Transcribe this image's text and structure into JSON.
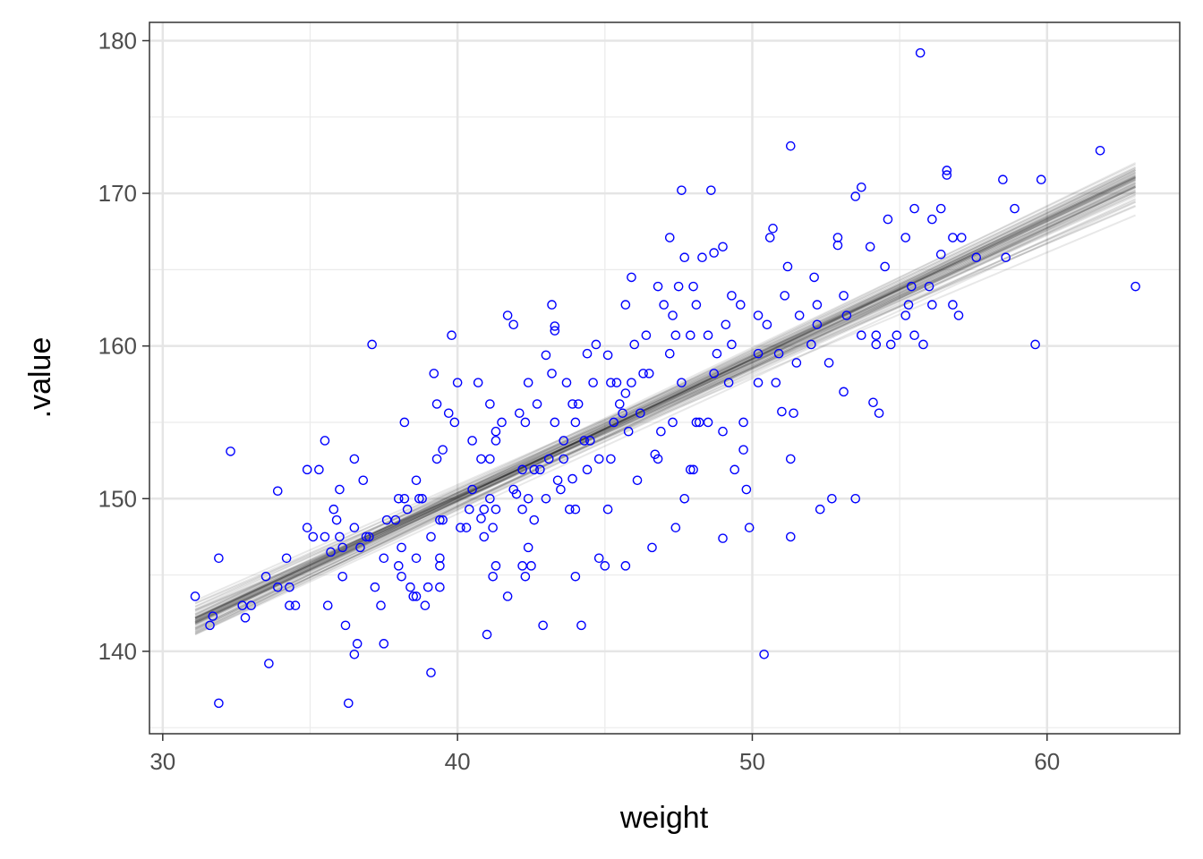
{
  "chart_data": {
    "type": "scatter",
    "title": "",
    "xlabel": "weight",
    "ylabel": ".value",
    "xlim": [
      29.55,
      64.5
    ],
    "ylim": [
      134.6,
      181.2
    ],
    "xticks": [
      30,
      40,
      50,
      60
    ],
    "yticks": [
      140,
      150,
      160,
      170,
      180
    ],
    "xtick_labels": [
      "30",
      "40",
      "50",
      "60"
    ],
    "ytick_labels": [
      "140",
      "150",
      "160",
      "170",
      "180"
    ],
    "grid": true,
    "point_color": "#0000ff",
    "line_color": "#000000",
    "fit_lines": {
      "n": 60,
      "x_range": [
        31.1,
        63.0
      ],
      "y_at_start": 142.0,
      "y_at_end": 170.6,
      "spread_start": 1.4,
      "spread_end": 1.6
    },
    "points": [
      [
        31.1,
        143.6
      ],
      [
        31.7,
        142.3
      ],
      [
        31.6,
        141.7
      ],
      [
        31.9,
        146.1
      ],
      [
        31.9,
        136.6
      ],
      [
        32.3,
        153.1
      ],
      [
        32.7,
        143.0
      ],
      [
        32.8,
        142.2
      ],
      [
        33.0,
        143.0
      ],
      [
        33.5,
        144.9
      ],
      [
        33.6,
        139.2
      ],
      [
        33.9,
        150.5
      ],
      [
        33.9,
        144.2
      ],
      [
        34.2,
        146.1
      ],
      [
        34.3,
        144.2
      ],
      [
        34.3,
        143.0
      ],
      [
        34.5,
        143.0
      ],
      [
        34.9,
        151.9
      ],
      [
        34.9,
        148.1
      ],
      [
        35.1,
        147.5
      ],
      [
        35.3,
        151.9
      ],
      [
        35.5,
        153.8
      ],
      [
        35.5,
        147.5
      ],
      [
        35.7,
        146.5
      ],
      [
        35.6,
        143.0
      ],
      [
        35.8,
        149.3
      ],
      [
        35.9,
        148.6
      ],
      [
        36.0,
        147.5
      ],
      [
        36.0,
        150.6
      ],
      [
        36.1,
        144.9
      ],
      [
        36.1,
        146.8
      ],
      [
        36.2,
        141.7
      ],
      [
        36.3,
        136.6
      ],
      [
        36.5,
        148.1
      ],
      [
        36.5,
        152.6
      ],
      [
        36.5,
        139.8
      ],
      [
        36.6,
        140.5
      ],
      [
        36.7,
        146.8
      ],
      [
        36.8,
        151.2
      ],
      [
        36.9,
        147.5
      ],
      [
        37.0,
        147.5
      ],
      [
        37.1,
        160.1
      ],
      [
        37.2,
        144.2
      ],
      [
        37.4,
        143.0
      ],
      [
        37.5,
        140.5
      ],
      [
        37.5,
        146.1
      ],
      [
        37.6,
        148.6
      ],
      [
        37.9,
        148.6
      ],
      [
        38.0,
        145.6
      ],
      [
        38.0,
        150.0
      ],
      [
        38.1,
        146.8
      ],
      [
        38.1,
        144.9
      ],
      [
        38.2,
        155.0
      ],
      [
        38.2,
        150.0
      ],
      [
        38.3,
        149.3
      ],
      [
        38.4,
        144.2
      ],
      [
        38.5,
        143.6
      ],
      [
        38.6,
        151.2
      ],
      [
        38.6,
        146.1
      ],
      [
        38.6,
        143.6
      ],
      [
        38.7,
        150.0
      ],
      [
        38.8,
        150.0
      ],
      [
        38.9,
        143.0
      ],
      [
        39.0,
        144.2
      ],
      [
        39.1,
        147.5
      ],
      [
        39.1,
        138.6
      ],
      [
        39.2,
        158.2
      ],
      [
        39.3,
        156.2
      ],
      [
        39.3,
        152.6
      ],
      [
        39.4,
        146.1
      ],
      [
        39.4,
        145.6
      ],
      [
        39.4,
        144.2
      ],
      [
        39.4,
        148.6
      ],
      [
        39.5,
        148.6
      ],
      [
        39.5,
        153.2
      ],
      [
        39.7,
        155.6
      ],
      [
        39.8,
        160.7
      ],
      [
        39.9,
        155.0
      ],
      [
        40.0,
        157.6
      ],
      [
        40.1,
        148.1
      ],
      [
        40.3,
        148.1
      ],
      [
        40.5,
        150.6
      ],
      [
        40.5,
        153.8
      ],
      [
        40.4,
        149.3
      ],
      [
        40.7,
        157.6
      ],
      [
        40.8,
        148.7
      ],
      [
        40.8,
        152.6
      ],
      [
        40.9,
        147.5
      ],
      [
        40.9,
        149.3
      ],
      [
        41.0,
        141.1
      ],
      [
        41.1,
        150.0
      ],
      [
        41.1,
        156.2
      ],
      [
        41.1,
        152.6
      ],
      [
        41.2,
        148.1
      ],
      [
        41.2,
        144.9
      ],
      [
        41.3,
        154.4
      ],
      [
        41.3,
        149.3
      ],
      [
        41.3,
        153.8
      ],
      [
        41.3,
        145.6
      ],
      [
        41.5,
        155.0
      ],
      [
        41.7,
        143.6
      ],
      [
        41.7,
        162.0
      ],
      [
        41.9,
        161.4
      ],
      [
        41.9,
        150.6
      ],
      [
        42.0,
        150.3
      ],
      [
        42.1,
        155.6
      ],
      [
        42.2,
        145.6
      ],
      [
        42.2,
        149.3
      ],
      [
        42.2,
        151.9
      ],
      [
        42.3,
        155.0
      ],
      [
        42.3,
        144.9
      ],
      [
        42.4,
        157.6
      ],
      [
        42.4,
        150.0
      ],
      [
        42.4,
        146.8
      ],
      [
        42.5,
        145.6
      ],
      [
        42.6,
        151.9
      ],
      [
        42.6,
        148.6
      ],
      [
        42.7,
        156.2
      ],
      [
        42.8,
        151.9
      ],
      [
        42.9,
        141.7
      ],
      [
        43.0,
        159.4
      ],
      [
        43.0,
        150.0
      ],
      [
        43.1,
        152.6
      ],
      [
        43.2,
        158.2
      ],
      [
        43.2,
        162.7
      ],
      [
        43.3,
        161.0
      ],
      [
        43.3,
        161.3
      ],
      [
        43.3,
        155.0
      ],
      [
        43.4,
        151.2
      ],
      [
        43.5,
        150.6
      ],
      [
        43.6,
        152.6
      ],
      [
        43.6,
        153.8
      ],
      [
        43.7,
        157.6
      ],
      [
        43.8,
        149.3
      ],
      [
        43.9,
        156.2
      ],
      [
        43.9,
        151.3
      ],
      [
        44.0,
        144.9
      ],
      [
        44.0,
        155.0
      ],
      [
        44.0,
        149.3
      ],
      [
        44.1,
        156.2
      ],
      [
        44.2,
        141.7
      ],
      [
        44.3,
        153.8
      ],
      [
        44.4,
        151.9
      ],
      [
        44.4,
        159.5
      ],
      [
        44.5,
        153.8
      ],
      [
        44.6,
        157.6
      ],
      [
        44.7,
        160.1
      ],
      [
        44.8,
        152.6
      ],
      [
        44.8,
        146.1
      ],
      [
        45.0,
        145.6
      ],
      [
        45.1,
        159.4
      ],
      [
        45.1,
        149.3
      ],
      [
        45.2,
        157.6
      ],
      [
        45.2,
        152.6
      ],
      [
        45.3,
        155.0
      ],
      [
        45.4,
        157.6
      ],
      [
        45.5,
        156.2
      ],
      [
        45.6,
        155.6
      ],
      [
        45.7,
        145.6
      ],
      [
        45.7,
        162.7
      ],
      [
        45.7,
        156.9
      ],
      [
        45.8,
        154.4
      ],
      [
        45.9,
        157.6
      ],
      [
        45.9,
        164.5
      ],
      [
        46.0,
        160.1
      ],
      [
        46.1,
        151.2
      ],
      [
        46.2,
        155.6
      ],
      [
        46.3,
        158.2
      ],
      [
        46.4,
        160.7
      ],
      [
        46.5,
        158.2
      ],
      [
        46.6,
        146.8
      ],
      [
        46.7,
        152.9
      ],
      [
        46.8,
        163.9
      ],
      [
        46.8,
        152.6
      ],
      [
        46.9,
        154.4
      ],
      [
        47.0,
        162.7
      ],
      [
        47.2,
        167.1
      ],
      [
        47.2,
        159.5
      ],
      [
        47.3,
        155.0
      ],
      [
        47.3,
        162.0
      ],
      [
        47.4,
        160.7
      ],
      [
        47.4,
        148.1
      ],
      [
        47.5,
        163.9
      ],
      [
        47.6,
        170.2
      ],
      [
        47.6,
        157.6
      ],
      [
        47.7,
        165.8
      ],
      [
        47.7,
        150.0
      ],
      [
        47.9,
        151.9
      ],
      [
        47.9,
        160.7
      ],
      [
        48.0,
        163.9
      ],
      [
        48.0,
        151.9
      ],
      [
        48.1,
        162.7
      ],
      [
        48.1,
        155.0
      ],
      [
        48.2,
        155.0
      ],
      [
        48.3,
        165.8
      ],
      [
        48.5,
        155.0
      ],
      [
        48.5,
        160.7
      ],
      [
        48.6,
        170.2
      ],
      [
        48.7,
        158.2
      ],
      [
        48.7,
        166.1
      ],
      [
        48.8,
        159.5
      ],
      [
        49.0,
        154.4
      ],
      [
        49.0,
        147.4
      ],
      [
        49.0,
        166.5
      ],
      [
        49.1,
        161.4
      ],
      [
        49.2,
        157.6
      ],
      [
        49.3,
        163.3
      ],
      [
        49.3,
        160.1
      ],
      [
        49.4,
        151.9
      ],
      [
        49.6,
        162.7
      ],
      [
        49.7,
        155.0
      ],
      [
        49.7,
        153.2
      ],
      [
        49.8,
        150.6
      ],
      [
        49.9,
        148.1
      ],
      [
        50.2,
        162.0
      ],
      [
        50.2,
        157.6
      ],
      [
        50.2,
        159.5
      ],
      [
        50.4,
        139.8
      ],
      [
        50.5,
        161.4
      ],
      [
        50.6,
        167.1
      ],
      [
        50.7,
        167.7
      ],
      [
        50.8,
        157.6
      ],
      [
        50.9,
        159.5
      ],
      [
        51.0,
        155.7
      ],
      [
        51.1,
        163.3
      ],
      [
        51.2,
        165.2
      ],
      [
        51.3,
        173.1
      ],
      [
        51.3,
        152.6
      ],
      [
        51.3,
        147.5
      ],
      [
        51.4,
        155.6
      ],
      [
        51.5,
        158.9
      ],
      [
        51.6,
        162.0
      ],
      [
        52.0,
        160.1
      ],
      [
        52.1,
        164.5
      ],
      [
        52.2,
        162.7
      ],
      [
        52.2,
        161.4
      ],
      [
        52.3,
        149.3
      ],
      [
        52.6,
        158.9
      ],
      [
        52.7,
        150.0
      ],
      [
        52.9,
        166.6
      ],
      [
        52.9,
        167.1
      ],
      [
        53.1,
        157.0
      ],
      [
        53.1,
        163.3
      ],
      [
        53.2,
        162.0
      ],
      [
        53.5,
        150.0
      ],
      [
        53.5,
        169.8
      ],
      [
        53.7,
        170.4
      ],
      [
        53.7,
        160.7
      ],
      [
        54.0,
        166.5
      ],
      [
        54.1,
        156.3
      ],
      [
        54.2,
        160.7
      ],
      [
        54.2,
        160.1
      ],
      [
        54.3,
        155.6
      ],
      [
        54.5,
        165.2
      ],
      [
        54.6,
        168.3
      ],
      [
        54.7,
        160.1
      ],
      [
        54.9,
        160.7
      ],
      [
        55.2,
        162.0
      ],
      [
        55.2,
        167.1
      ],
      [
        55.3,
        162.7
      ],
      [
        55.4,
        163.9
      ],
      [
        55.5,
        160.7
      ],
      [
        55.5,
        169.0
      ],
      [
        55.7,
        179.2
      ],
      [
        55.8,
        160.1
      ],
      [
        56.0,
        163.9
      ],
      [
        56.1,
        168.3
      ],
      [
        56.1,
        162.7
      ],
      [
        56.4,
        169.0
      ],
      [
        56.4,
        166.0
      ],
      [
        56.6,
        171.5
      ],
      [
        56.6,
        171.2
      ],
      [
        56.8,
        167.1
      ],
      [
        56.8,
        162.7
      ],
      [
        57.0,
        162.0
      ],
      [
        57.1,
        167.1
      ],
      [
        57.6,
        165.8
      ],
      [
        58.5,
        170.9
      ],
      [
        58.6,
        165.8
      ],
      [
        58.9,
        169.0
      ],
      [
        59.6,
        160.1
      ],
      [
        59.8,
        170.9
      ],
      [
        61.8,
        172.8
      ],
      [
        63.0,
        163.9
      ]
    ]
  }
}
